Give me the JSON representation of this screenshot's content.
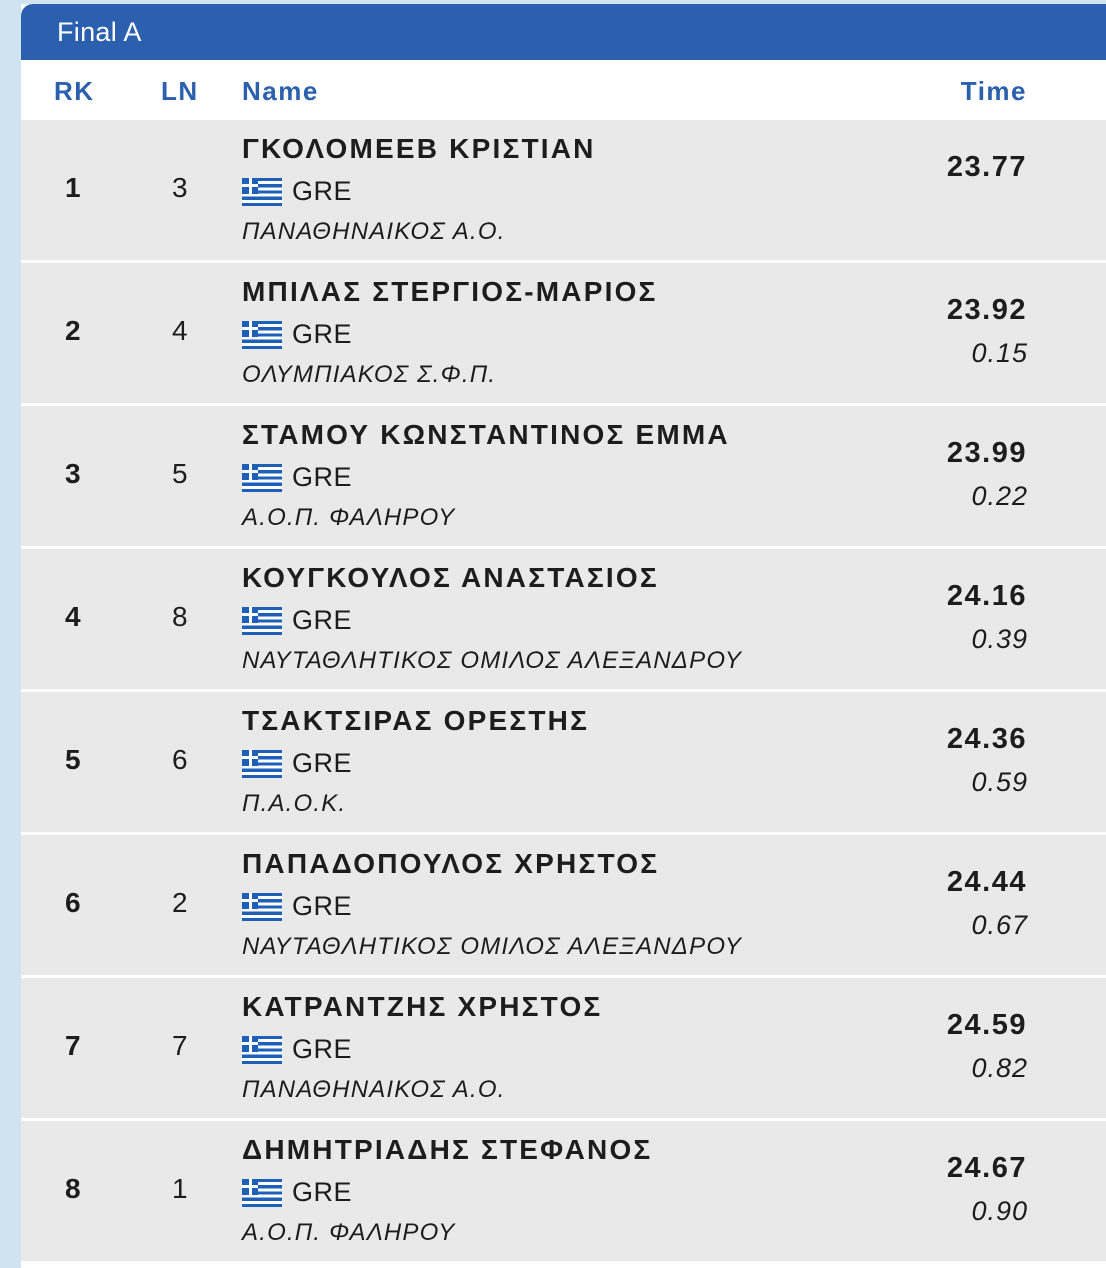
{
  "panel": {
    "title": "Final A"
  },
  "columns": {
    "rk": "RK",
    "ln": "LN",
    "name": "Name",
    "time": "Time"
  },
  "results": [
    {
      "rk": "1",
      "ln": "3",
      "name": "ΓΚΟΛΟΜΕΕΒ ΚΡΙΣΤΙΑΝ",
      "country": "GRE",
      "club": "ΠΑΝΑΘΗΝΑΙΚΟΣ Α.Ο.",
      "time": "23.77",
      "behind": ""
    },
    {
      "rk": "2",
      "ln": "4",
      "name": "ΜΠΙΛΑΣ ΣΤΕΡΓΙΟΣ-ΜΑΡΙΟΣ",
      "country": "GRE",
      "club": "ΟΛΥΜΠΙΑΚΟΣ Σ.Φ.Π.",
      "time": "23.92",
      "behind": "0.15"
    },
    {
      "rk": "3",
      "ln": "5",
      "name": "ΣΤΑΜΟΥ ΚΩΝΣΤΑΝΤΙΝΟΣ ΕΜΜΑ",
      "country": "GRE",
      "club": "Α.Ο.Π. ΦΑΛΗΡΟΥ",
      "time": "23.99",
      "behind": "0.22"
    },
    {
      "rk": "4",
      "ln": "8",
      "name": "ΚΟΥΓΚΟΥΛΟΣ ΑΝΑΣΤΑΣΙΟΣ",
      "country": "GRE",
      "club": "ΝΑΥΤΑΘΛΗΤΙΚΟΣ ΟΜΙΛΟΣ ΑΛΕΞΑΝΔΡΟΥ",
      "time": "24.16",
      "behind": "0.39"
    },
    {
      "rk": "5",
      "ln": "6",
      "name": "ΤΣΑΚΤΣΙΡΑΣ ΟΡΕΣΤΗΣ",
      "country": "GRE",
      "club": "Π.Α.Ο.Κ.",
      "time": "24.36",
      "behind": "0.59"
    },
    {
      "rk": "6",
      "ln": "2",
      "name": "ΠΑΠΑΔΟΠΟΥΛΟΣ ΧΡΗΣΤΟΣ",
      "country": "GRE",
      "club": "ΝΑΥΤΑΘΛΗΤΙΚΟΣ ΟΜΙΛΟΣ ΑΛΕΞΑΝΔΡΟΥ",
      "time": "24.44",
      "behind": "0.67"
    },
    {
      "rk": "7",
      "ln": "7",
      "name": "ΚΑΤΡΑΝΤΖΗΣ ΧΡΗΣΤΟΣ",
      "country": "GRE",
      "club": "ΠΑΝΑΘΗΝΑΙΚΟΣ Α.Ο.",
      "time": "24.59",
      "behind": "0.82"
    },
    {
      "rk": "8",
      "ln": "1",
      "name": "ΔΗΜΗΤΡΙΑΔΗΣ ΣΤΕΦΑΝΟΣ",
      "country": "GRE",
      "club": "Α.Ο.Π. ΦΑΛΗΡΟΥ",
      "time": "24.67",
      "behind": "0.90"
    }
  ],
  "icons": {
    "flag": "greece-flag-icon"
  },
  "colors": {
    "accent": "#2a60ad",
    "row_bg": "#e9e9e9",
    "page_bg": "#cfe3f1"
  }
}
